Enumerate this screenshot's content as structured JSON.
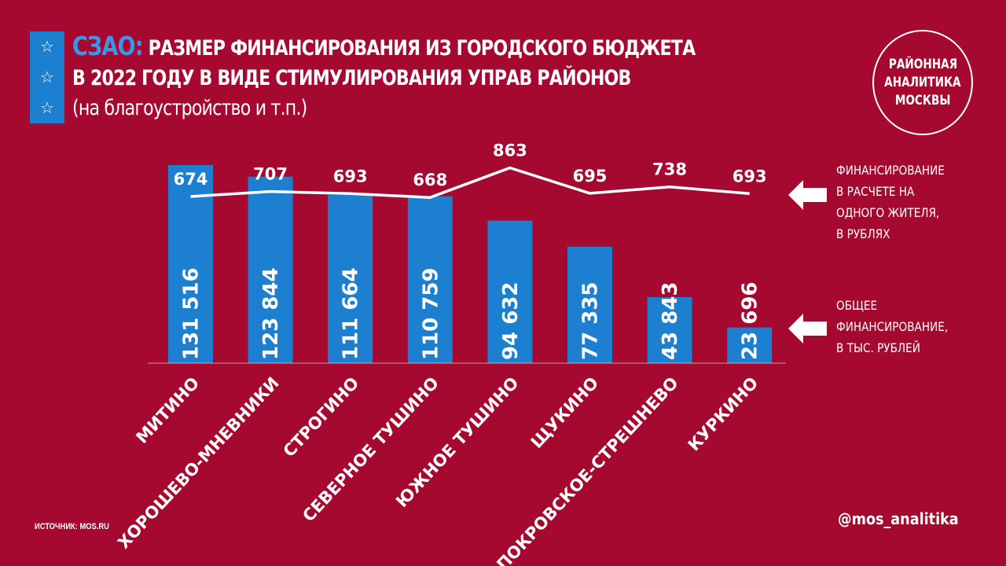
{
  "title": {
    "accent": "СЗАО:",
    "line1": "РАЗМЕР ФИНАНСИРОВАНИЯ ИЗ ГОРОДСКОГО БЮДЖЕТА",
    "line2": "В 2022 ГОДУ В ВИДЕ СТИМУЛИРОВАНИЯ УПРАВ РАЙОНОВ",
    "line3": "(на благоустройство и т.п.)"
  },
  "icons": [
    "star-outline-icon",
    "star-outline-icon",
    "star-outline-icon"
  ],
  "logo": {
    "lines": [
      "РАЙОННАЯ",
      "АНАЛИТИКА",
      "МОСКВЫ"
    ]
  },
  "legend": {
    "line_series": [
      "ФИНАНСИРОВАНИЕ",
      "В РАСЧЕТЕ НА",
      "ОДНОГО ЖИТЕЛЯ,",
      "В РУБЛЯХ"
    ],
    "bar_series": [
      "ОБЩЕЕ",
      "ФИНАНСИРОВАНИЕ,",
      "В ТЫС. РУБЛЕЙ"
    ]
  },
  "source": "ИСТОЧНИК: MOS.RU",
  "handle": "@mos_analitika",
  "colors": {
    "background": "#a6092f",
    "bar": "#1c7fd0",
    "line": "#ffffff",
    "accent": "#3c95e6"
  },
  "chart_data": {
    "type": "bar",
    "categories": [
      "МИТИНО",
      "ХОРОШЕВО-МНЕВНИКИ",
      "СТРОГИНО",
      "СЕВЕРНОЕ ТУШИНО",
      "ЮЖНОЕ ТУШИНО",
      "ЩУКИНО",
      "ПОКРОВСКОЕ-СТРЕШНЕВО",
      "КУРКИНО"
    ],
    "series": [
      {
        "type": "bar",
        "values": [
          131516,
          123844,
          111664,
          110759,
          94632,
          77335,
          43843,
          23696
        ],
        "labels": [
          "131 516",
          "123 844",
          "111 664",
          "110 759",
          "94 632",
          "77 335",
          "43 843",
          "23 696"
        ]
      },
      {
        "type": "line",
        "values": [
          674,
          707,
          693,
          668,
          863,
          695,
          738,
          693
        ],
        "labels": [
          "674",
          "707",
          "693",
          "668",
          "863",
          "695",
          "738",
          "693"
        ]
      }
    ],
    "grid": false,
    "legend_position": "right"
  }
}
